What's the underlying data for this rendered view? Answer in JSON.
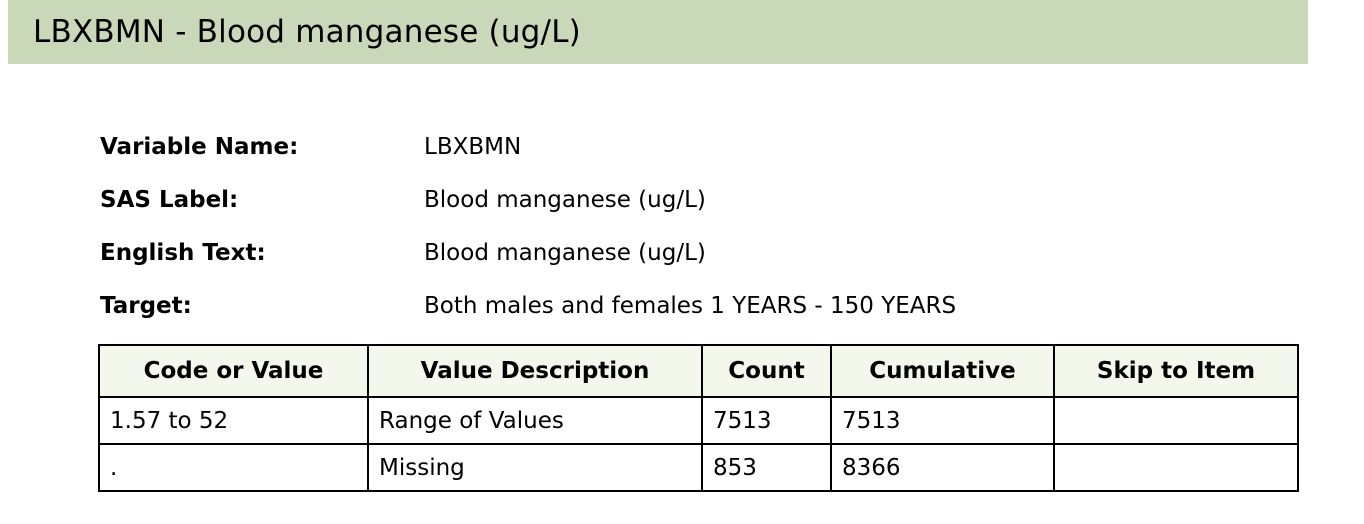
{
  "title": "LBXBMN - Blood manganese (ug/L)",
  "info": [
    {
      "label": "Variable Name:",
      "value": "LBXBMN"
    },
    {
      "label": "SAS Label:",
      "value": "Blood manganese (ug/L)"
    },
    {
      "label": "English Text:",
      "value": "Blood manganese (ug/L)"
    },
    {
      "label": "Target:",
      "value": "Both males and females 1 YEARS - 150 YEARS"
    }
  ],
  "table": {
    "headers": [
      "Code or Value",
      "Value Description",
      "Count",
      "Cumulative",
      "Skip to Item"
    ],
    "rows": [
      [
        "1.57 to 52",
        "Range of Values",
        "7513",
        "7513",
        ""
      ],
      [
        ".",
        "Missing",
        "853",
        "8366",
        ""
      ]
    ]
  }
}
